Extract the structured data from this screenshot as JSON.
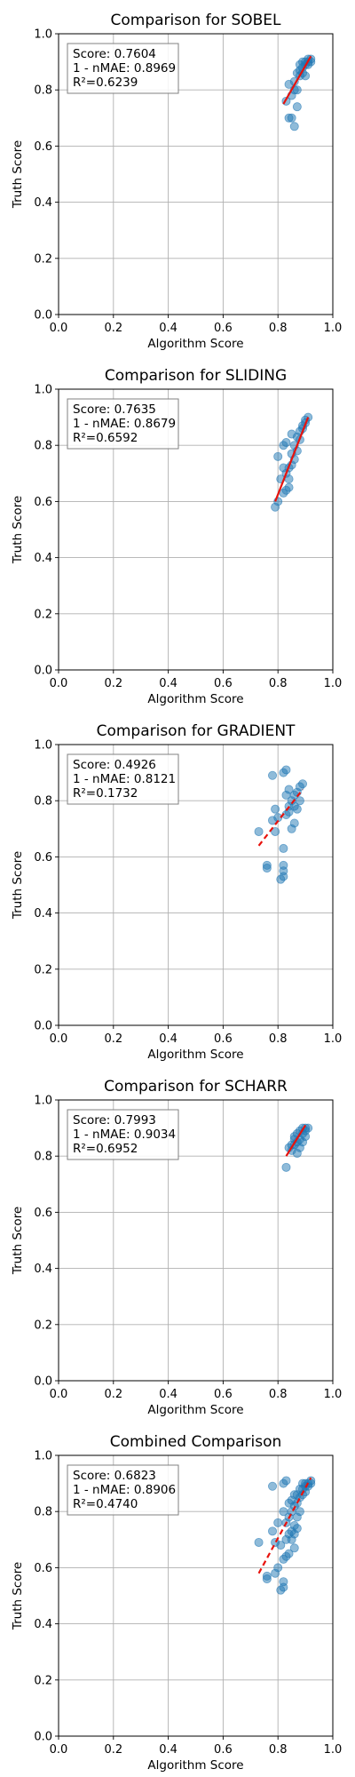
{
  "chart_data": [
    {
      "type": "scatter",
      "title": "Comparison for SOBEL",
      "xlabel": "Algorithm Score",
      "ylabel": "Truth Score",
      "xlim": [
        0,
        1
      ],
      "ylim": [
        0,
        1
      ],
      "xticks": [
        "0.0",
        "0.2",
        "0.4",
        "0.6",
        "0.8",
        "1.0"
      ],
      "yticks": [
        "0.0",
        "0.2",
        "0.4",
        "0.6",
        "0.8",
        "1.0"
      ],
      "grid": true,
      "annotation": [
        "Score: 0.7604",
        "1 - nMAE: 0.8969",
        "R²=0.6239"
      ],
      "fit_style": "solid",
      "fit": [
        [
          0.82,
          0.75
        ],
        [
          0.92,
          0.92
        ]
      ],
      "points": [
        [
          0.83,
          0.76
        ],
        [
          0.84,
          0.7
        ],
        [
          0.85,
          0.7
        ],
        [
          0.86,
          0.67
        ],
        [
          0.87,
          0.74
        ],
        [
          0.84,
          0.82
        ],
        [
          0.86,
          0.83
        ],
        [
          0.87,
          0.86
        ],
        [
          0.88,
          0.87
        ],
        [
          0.89,
          0.88
        ],
        [
          0.9,
          0.89
        ],
        [
          0.91,
          0.9
        ],
        [
          0.92,
          0.91
        ],
        [
          0.88,
          0.85
        ],
        [
          0.89,
          0.86
        ],
        [
          0.9,
          0.9
        ],
        [
          0.91,
          0.91
        ],
        [
          0.87,
          0.8
        ],
        [
          0.85,
          0.78
        ],
        [
          0.9,
          0.85
        ],
        [
          0.89,
          0.9
        ],
        [
          0.88,
          0.89
        ],
        [
          0.86,
          0.8
        ],
        [
          0.92,
          0.9
        ],
        [
          0.91,
          0.89
        ]
      ]
    },
    {
      "type": "scatter",
      "title": "Comparison for SLIDING",
      "xlabel": "Algorithm Score",
      "ylabel": "Truth Score",
      "xlim": [
        0,
        1
      ],
      "ylim": [
        0,
        1
      ],
      "xticks": [
        "0.0",
        "0.2",
        "0.4",
        "0.6",
        "0.8",
        "1.0"
      ],
      "yticks": [
        "0.0",
        "0.2",
        "0.4",
        "0.6",
        "0.8",
        "1.0"
      ],
      "grid": true,
      "annotation": [
        "Score: 0.7635",
        "1 - nMAE: 0.8679",
        "R²=0.6592"
      ],
      "fit_style": "solid",
      "fit": [
        [
          0.79,
          0.6
        ],
        [
          0.91,
          0.9
        ]
      ],
      "points": [
        [
          0.79,
          0.58
        ],
        [
          0.8,
          0.6
        ],
        [
          0.81,
          0.68
        ],
        [
          0.8,
          0.76
        ],
        [
          0.82,
          0.8
        ],
        [
          0.83,
          0.81
        ],
        [
          0.82,
          0.63
        ],
        [
          0.83,
          0.64
        ],
        [
          0.84,
          0.65
        ],
        [
          0.83,
          0.7
        ],
        [
          0.84,
          0.72
        ],
        [
          0.85,
          0.73
        ],
        [
          0.85,
          0.77
        ],
        [
          0.86,
          0.8
        ],
        [
          0.87,
          0.83
        ],
        [
          0.88,
          0.85
        ],
        [
          0.89,
          0.87
        ],
        [
          0.9,
          0.89
        ],
        [
          0.91,
          0.9
        ],
        [
          0.86,
          0.75
        ],
        [
          0.84,
          0.68
        ],
        [
          0.87,
          0.78
        ],
        [
          0.88,
          0.82
        ],
        [
          0.82,
          0.72
        ],
        [
          0.85,
          0.84
        ],
        [
          0.89,
          0.86
        ],
        [
          0.9,
          0.88
        ]
      ]
    },
    {
      "type": "scatter",
      "title": "Comparison for GRADIENT",
      "xlabel": "Algorithm Score",
      "ylabel": "Truth Score",
      "xlim": [
        0,
        1
      ],
      "ylim": [
        0,
        1
      ],
      "xticks": [
        "0.0",
        "0.2",
        "0.4",
        "0.6",
        "0.8",
        "1.0"
      ],
      "yticks": [
        "0.0",
        "0.2",
        "0.4",
        "0.6",
        "0.8",
        "1.0"
      ],
      "grid": true,
      "annotation": [
        "Score: 0.4926",
        "1 - nMAE: 0.8121",
        "R²=0.1732"
      ],
      "fit_style": "dashed",
      "fit": [
        [
          0.73,
          0.64
        ],
        [
          0.89,
          0.84
        ]
      ],
      "points": [
        [
          0.73,
          0.69
        ],
        [
          0.76,
          0.57
        ],
        [
          0.76,
          0.56
        ],
        [
          0.78,
          0.89
        ],
        [
          0.79,
          0.69
        ],
        [
          0.78,
          0.73
        ],
        [
          0.79,
          0.77
        ],
        [
          0.8,
          0.74
        ],
        [
          0.81,
          0.52
        ],
        [
          0.82,
          0.53
        ],
        [
          0.82,
          0.55
        ],
        [
          0.82,
          0.57
        ],
        [
          0.82,
          0.63
        ],
        [
          0.82,
          0.9
        ],
        [
          0.83,
          0.91
        ],
        [
          0.83,
          0.75
        ],
        [
          0.84,
          0.76
        ],
        [
          0.85,
          0.8
        ],
        [
          0.86,
          0.82
        ],
        [
          0.87,
          0.83
        ],
        [
          0.88,
          0.85
        ],
        [
          0.89,
          0.86
        ],
        [
          0.87,
          0.77
        ],
        [
          0.86,
          0.72
        ],
        [
          0.84,
          0.78
        ],
        [
          0.85,
          0.7
        ],
        [
          0.83,
          0.82
        ],
        [
          0.88,
          0.8
        ],
        [
          0.84,
          0.84
        ],
        [
          0.86,
          0.78
        ]
      ]
    },
    {
      "type": "scatter",
      "title": "Comparison for SCHARR",
      "xlabel": "Algorithm Score",
      "ylabel": "Truth Score",
      "xlim": [
        0,
        1
      ],
      "ylim": [
        0,
        1
      ],
      "xticks": [
        "0.0",
        "0.2",
        "0.4",
        "0.6",
        "0.8",
        "1.0"
      ],
      "yticks": [
        "0.0",
        "0.2",
        "0.4",
        "0.6",
        "0.8",
        "1.0"
      ],
      "grid": true,
      "annotation": [
        "Score: 0.7993",
        "1 - nMAE: 0.9034",
        "R²=0.6952"
      ],
      "fit_style": "solid",
      "fit": [
        [
          0.83,
          0.8
        ],
        [
          0.9,
          0.91
        ]
      ],
      "points": [
        [
          0.83,
          0.76
        ],
        [
          0.84,
          0.83
        ],
        [
          0.85,
          0.82
        ],
        [
          0.86,
          0.84
        ],
        [
          0.86,
          0.86
        ],
        [
          0.87,
          0.85
        ],
        [
          0.87,
          0.88
        ],
        [
          0.88,
          0.86
        ],
        [
          0.88,
          0.89
        ],
        [
          0.89,
          0.88
        ],
        [
          0.89,
          0.9
        ],
        [
          0.9,
          0.9
        ],
        [
          0.9,
          0.89
        ],
        [
          0.91,
          0.9
        ],
        [
          0.87,
          0.81
        ],
        [
          0.86,
          0.87
        ],
        [
          0.88,
          0.83
        ],
        [
          0.89,
          0.85
        ],
        [
          0.85,
          0.84
        ],
        [
          0.9,
          0.87
        ]
      ]
    },
    {
      "type": "scatter",
      "title": "Combined Comparison",
      "xlabel": "Algorithm Score",
      "ylabel": "Truth Score",
      "xlim": [
        0,
        1
      ],
      "ylim": [
        0,
        1
      ],
      "xticks": [
        "0.0",
        "0.2",
        "0.4",
        "0.6",
        "0.8",
        "1.0"
      ],
      "yticks": [
        "0.0",
        "0.2",
        "0.4",
        "0.6",
        "0.8",
        "1.0"
      ],
      "grid": true,
      "annotation": [
        "Score: 0.6823",
        "1 - nMAE: 0.8906",
        "R²=0.4740"
      ],
      "fit_style": "dashed",
      "fit": [
        [
          0.73,
          0.58
        ],
        [
          0.92,
          0.92
        ]
      ],
      "points": [
        [
          0.73,
          0.69
        ],
        [
          0.76,
          0.57
        ],
        [
          0.76,
          0.56
        ],
        [
          0.78,
          0.89
        ],
        [
          0.78,
          0.73
        ],
        [
          0.79,
          0.58
        ],
        [
          0.79,
          0.69
        ],
        [
          0.8,
          0.6
        ],
        [
          0.8,
          0.76
        ],
        [
          0.81,
          0.52
        ],
        [
          0.81,
          0.68
        ],
        [
          0.82,
          0.53
        ],
        [
          0.82,
          0.55
        ],
        [
          0.82,
          0.63
        ],
        [
          0.82,
          0.8
        ],
        [
          0.82,
          0.9
        ],
        [
          0.83,
          0.91
        ],
        [
          0.83,
          0.64
        ],
        [
          0.83,
          0.7
        ],
        [
          0.83,
          0.76
        ],
        [
          0.84,
          0.65
        ],
        [
          0.84,
          0.72
        ],
        [
          0.84,
          0.78
        ],
        [
          0.84,
          0.83
        ],
        [
          0.85,
          0.7
        ],
        [
          0.85,
          0.73
        ],
        [
          0.85,
          0.8
        ],
        [
          0.86,
          0.67
        ],
        [
          0.86,
          0.75
        ],
        [
          0.86,
          0.82
        ],
        [
          0.86,
          0.86
        ],
        [
          0.87,
          0.74
        ],
        [
          0.87,
          0.78
        ],
        [
          0.87,
          0.83
        ],
        [
          0.87,
          0.86
        ],
        [
          0.88,
          0.8
        ],
        [
          0.88,
          0.85
        ],
        [
          0.88,
          0.88
        ],
        [
          0.89,
          0.86
        ],
        [
          0.89,
          0.88
        ],
        [
          0.9,
          0.87
        ],
        [
          0.9,
          0.89
        ],
        [
          0.9,
          0.9
        ],
        [
          0.91,
          0.89
        ],
        [
          0.91,
          0.9
        ],
        [
          0.92,
          0.91
        ],
        [
          0.92,
          0.9
        ],
        [
          0.89,
          0.9
        ],
        [
          0.85,
          0.84
        ],
        [
          0.86,
          0.72
        ]
      ]
    }
  ]
}
